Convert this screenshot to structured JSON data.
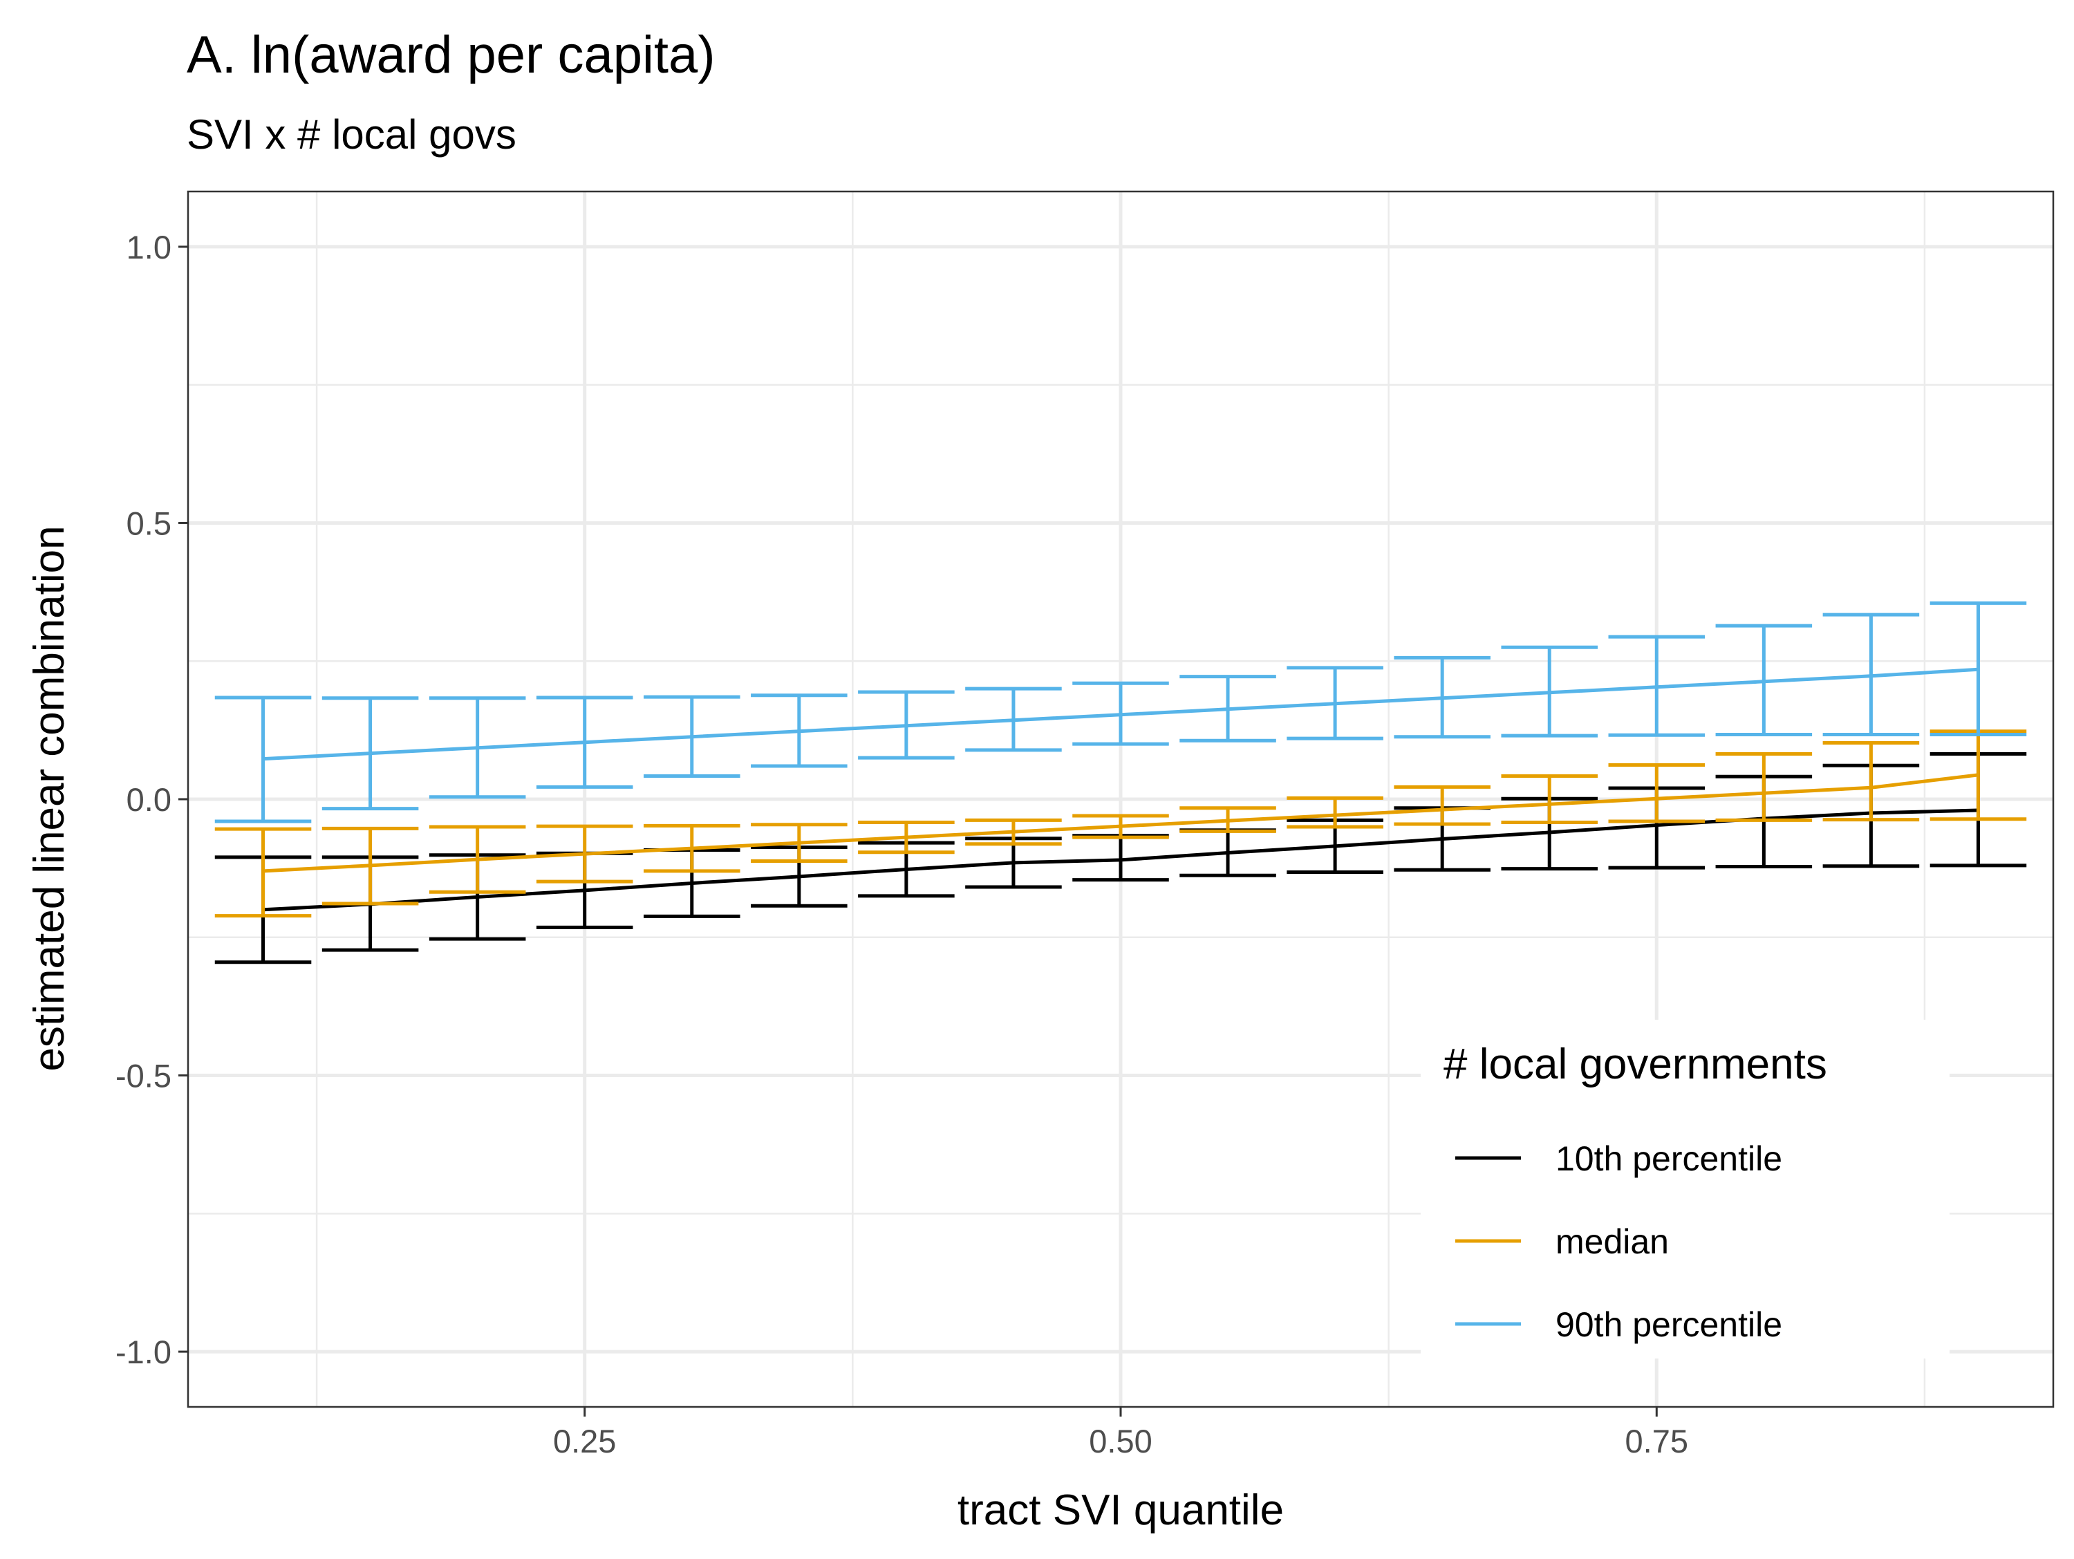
{
  "chart_data": {
    "type": "line",
    "title": "A. ln(award per capita)",
    "subtitle": "SVI x # local govs",
    "xlabel": "tract SVI quantile",
    "ylabel": "estimated linear combination",
    "xlim": [
      0.065,
      0.935
    ],
    "ylim": [
      -1.1,
      1.1
    ],
    "x_ticks": [
      0.25,
      0.5,
      0.75
    ],
    "x_tick_labels": [
      "0.25",
      "0.50",
      "0.75"
    ],
    "x_minor": [
      0.125,
      0.375,
      0.625,
      0.875
    ],
    "y_ticks": [
      1.0,
      0.5,
      0.0,
      -0.5,
      -1.0
    ],
    "y_tick_labels": [
      "1.0",
      "0.5",
      "0.0",
      "-0.5",
      "-1.0"
    ],
    "y_minor": [
      0.75,
      0.25,
      -0.25,
      -0.75
    ],
    "grid": true,
    "legend": {
      "title": "# local governments",
      "position": "bottom-right"
    },
    "x": [
      0.1,
      0.15,
      0.2,
      0.25,
      0.3,
      0.35,
      0.4,
      0.45,
      0.5,
      0.55,
      0.6,
      0.65,
      0.7,
      0.75,
      0.8,
      0.85,
      0.9
    ],
    "series": [
      {
        "name": "10th percentile",
        "color": "#000000",
        "estimate": [
          -0.2,
          -0.19,
          -0.177,
          -0.165,
          -0.152,
          -0.14,
          -0.127,
          -0.115,
          -0.11,
          -0.097,
          -0.085,
          -0.072,
          -0.06,
          -0.047,
          -0.035,
          -0.025,
          -0.02
        ],
        "lower": [
          -0.295,
          -0.273,
          -0.253,
          -0.232,
          -0.212,
          -0.193,
          -0.175,
          -0.159,
          -0.146,
          -0.138,
          -0.132,
          -0.128,
          -0.126,
          -0.124,
          -0.122,
          -0.121,
          -0.12
        ],
        "upper": [
          -0.105,
          -0.105,
          -0.101,
          -0.098,
          -0.092,
          -0.087,
          -0.079,
          -0.071,
          -0.066,
          -0.056,
          -0.038,
          -0.016,
          0.001,
          0.02,
          0.041,
          0.061,
          0.082
        ]
      },
      {
        "name": "median",
        "color": "#E69F00",
        "estimate": [
          -0.13,
          -0.12,
          -0.109,
          -0.099,
          -0.089,
          -0.079,
          -0.069,
          -0.059,
          -0.049,
          -0.039,
          -0.029,
          -0.019,
          -0.009,
          0.001,
          0.011,
          0.021,
          0.044
        ],
        "lower": [
          -0.211,
          -0.189,
          -0.168,
          -0.149,
          -0.13,
          -0.112,
          -0.096,
          -0.081,
          -0.069,
          -0.058,
          -0.05,
          -0.045,
          -0.042,
          -0.04,
          -0.038,
          -0.037,
          -0.036
        ],
        "upper": [
          -0.054,
          -0.053,
          -0.05,
          -0.049,
          -0.048,
          -0.046,
          -0.042,
          -0.038,
          -0.03,
          -0.016,
          0.002,
          0.022,
          0.042,
          0.062,
          0.082,
          0.102,
          0.123
        ]
      },
      {
        "name": "90th percentile",
        "color": "#56B4E9",
        "estimate": [
          0.073,
          0.083,
          0.093,
          0.103,
          0.113,
          0.123,
          0.133,
          0.143,
          0.153,
          0.163,
          0.173,
          0.183,
          0.193,
          0.203,
          0.213,
          0.223,
          0.235
        ],
        "lower": [
          -0.04,
          -0.017,
          0.004,
          0.022,
          0.042,
          0.06,
          0.075,
          0.089,
          0.1,
          0.106,
          0.11,
          0.113,
          0.115,
          0.116,
          0.117,
          0.117,
          0.117
        ],
        "upper": [
          0.184,
          0.183,
          0.183,
          0.184,
          0.185,
          0.188,
          0.194,
          0.2,
          0.21,
          0.222,
          0.238,
          0.256,
          0.275,
          0.294,
          0.314,
          0.334,
          0.355
        ]
      }
    ]
  }
}
